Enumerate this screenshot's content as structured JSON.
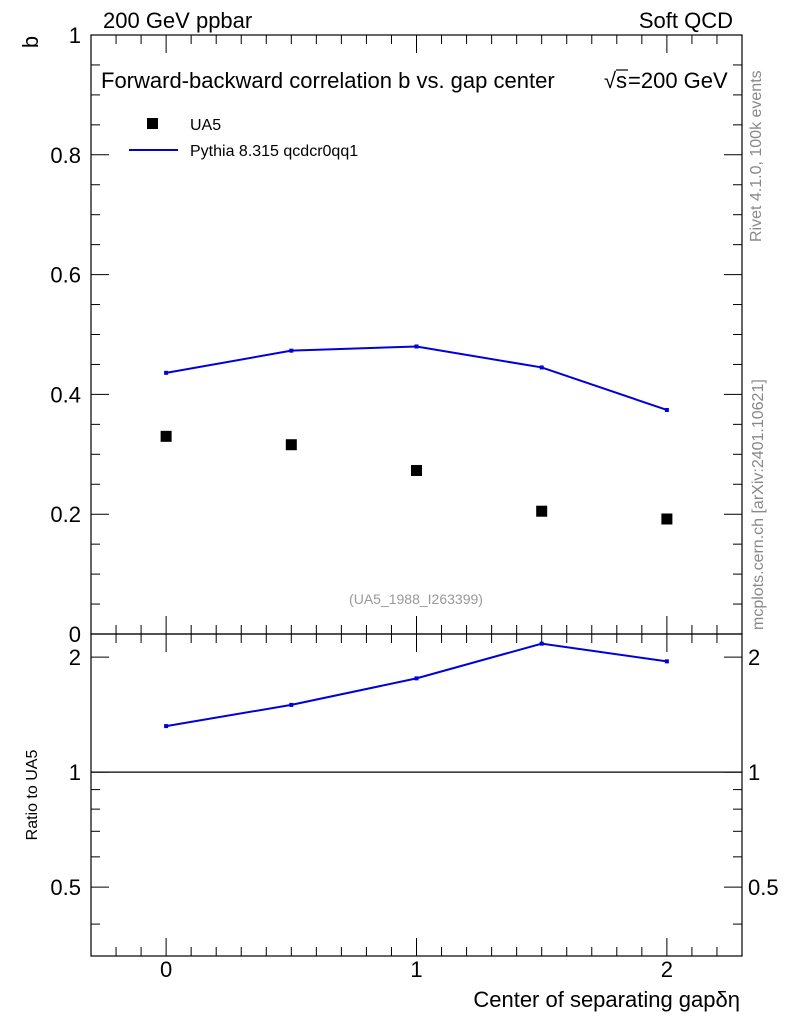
{
  "header": {
    "left_label": "200 GeV ppbar",
    "right_label": "Soft QCD"
  },
  "side_labels": {
    "rivet": "Rivet 4.1.0,  100k events",
    "mcplots": "mcplots.cern.ch [arXiv:2401.10621]"
  },
  "chart_data": [
    {
      "type": "scatter+line",
      "title_prefix": "Forward-backward correlation b  vs. gap center",
      "title_suffix": "=200 GeV",
      "title_sqrt": "√",
      "title_s": "s",
      "xlabel": "Center of separating gapδη",
      "ylabel": "b",
      "xlim": [
        -0.3,
        2.3
      ],
      "ylim": [
        0,
        1.0
      ],
      "yticks": [
        0,
        0.2,
        0.4,
        0.6,
        0.8,
        1
      ],
      "ytick_labels": [
        "0",
        "0.2",
        "0.4",
        "0.6",
        "0.8",
        "1"
      ],
      "x": [
        0,
        0.5,
        1,
        1.5,
        2
      ],
      "series": [
        {
          "name": "UA5",
          "kind": "data",
          "color": "#000000",
          "values": [
            0.33,
            0.316,
            0.273,
            0.205,
            0.192
          ]
        },
        {
          "name": "Pythia 8.315 qcdcr0qq1",
          "kind": "mc",
          "color": "#0000dd",
          "values": [
            0.436,
            0.473,
            0.48,
            0.445,
            0.374
          ]
        }
      ],
      "annotation": "(UA5_1988_I263399)"
    },
    {
      "type": "line",
      "ylabel": "Ratio to UA5",
      "xlim": [
        -0.3,
        2.3
      ],
      "ylim": [
        0.33,
        2.3
      ],
      "yscale": "log",
      "yticks": [
        0.5,
        1,
        2
      ],
      "ytick_labels": [
        "0.5",
        "1",
        "2"
      ],
      "xticks": [
        0,
        1,
        2
      ],
      "xtick_labels": [
        "0",
        "1",
        "2"
      ],
      "reference_line": 1,
      "x": [
        0,
        0.5,
        1,
        1.5,
        2
      ],
      "series": [
        {
          "name": "Pythia 8.315 qcdcr0qq1 / UA5",
          "color": "#0000dd",
          "values": [
            1.32,
            1.5,
            1.76,
            2.17,
            1.95
          ]
        }
      ]
    }
  ]
}
